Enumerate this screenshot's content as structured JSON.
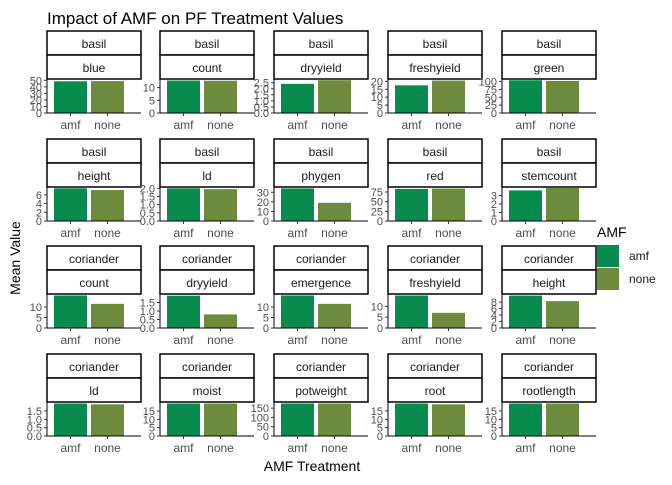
{
  "chart_data": {
    "type": "bar",
    "title": "Impact of AMF on PF Treatment Values",
    "xlabel": "AMF Treatment",
    "ylabel": "Mean Value",
    "categories": [
      "amf",
      "none"
    ],
    "legend": {
      "title": "AMF",
      "position": "right",
      "entries": [
        {
          "label": "amf",
          "color": "#078b4f"
        },
        {
          "label": "none",
          "color": "#6e8b3d"
        }
      ]
    },
    "grid": false,
    "facets": [
      {
        "crop": "basil",
        "variable": "blue",
        "values": [
          48.5,
          48.8
        ],
        "ylim": [
          0,
          52
        ],
        "ticks": [
          0,
          10,
          20,
          30,
          40,
          50
        ]
      },
      {
        "crop": "basil",
        "variable": "count",
        "values": [
          12.8,
          12.7
        ],
        "ylim": [
          0,
          13.4
        ],
        "ticks": [
          0,
          5,
          10
        ]
      },
      {
        "crop": "basil",
        "variable": "dryyield",
        "values": [
          2.4,
          2.7
        ],
        "ylim": [
          0,
          2.8
        ],
        "ticks": [
          0.0,
          0.5,
          1.0,
          1.5,
          2.0,
          2.5
        ],
        "tick_labels": [
          "0.0",
          "0.5",
          "1.0",
          "1.5",
          "2.0",
          "2.5"
        ]
      },
      {
        "crop": "basil",
        "variable": "freshyield",
        "values": [
          17.5,
          20.5
        ],
        "ylim": [
          0,
          21.5
        ],
        "ticks": [
          0,
          5,
          10,
          15,
          20
        ]
      },
      {
        "crop": "basil",
        "variable": "green",
        "values": [
          104,
          102
        ],
        "ylim": [
          0,
          108
        ],
        "ticks": [
          0,
          25,
          50,
          75,
          100
        ]
      },
      {
        "crop": "basil",
        "variable": "height",
        "values": [
          7.5,
          7.1
        ],
        "ylim": [
          0,
          7.8
        ],
        "ticks": [
          0,
          2,
          4,
          6
        ]
      },
      {
        "crop": "basil",
        "variable": "ld",
        "values": [
          2.0,
          1.95
        ],
        "ylim": [
          0,
          2.08
        ],
        "ticks": [
          0.0,
          0.5,
          1.0,
          1.5,
          2.0
        ],
        "tick_labels": [
          "0.0",
          "0.5",
          "1.0",
          "1.5",
          "2.0"
        ]
      },
      {
        "crop": "basil",
        "variable": "phygen",
        "values": [
          34,
          19
        ],
        "ylim": [
          0,
          35.5
        ],
        "ticks": [
          0,
          10,
          20,
          30
        ]
      },
      {
        "crop": "basil",
        "variable": "red",
        "values": [
          83,
          84
        ],
        "ylim": [
          0,
          88
        ],
        "ticks": [
          0,
          25,
          50,
          75
        ]
      },
      {
        "crop": "basil",
        "variable": "stemcount",
        "values": [
          3.6,
          3.9
        ],
        "ylim": [
          0,
          4.0
        ],
        "ticks": [
          0,
          1,
          2,
          3
        ]
      },
      {
        "crop": "coriander",
        "variable": "count",
        "values": [
          15.5,
          11.5
        ],
        "ylim": [
          0,
          16.2
        ],
        "ticks": [
          0,
          5,
          10
        ]
      },
      {
        "crop": "coriander",
        "variable": "dryyield",
        "values": [
          1.9,
          0.8
        ],
        "ylim": [
          0,
          2.0
        ],
        "ticks": [
          0.0,
          0.5,
          1.0,
          1.5
        ],
        "tick_labels": [
          "0.0",
          "0.5",
          "1.0",
          "1.5"
        ]
      },
      {
        "crop": "coriander",
        "variable": "emergence",
        "values": [
          15.5,
          11.5
        ],
        "ylim": [
          0,
          16.2
        ],
        "ticks": [
          0,
          5,
          10
        ]
      },
      {
        "crop": "coriander",
        "variable": "freshyield",
        "values": [
          15,
          7
        ],
        "ylim": [
          0,
          15.7
        ],
        "ticks": [
          0,
          5,
          10
        ]
      },
      {
        "crop": "coriander",
        "variable": "height",
        "values": [
          10,
          8.3
        ],
        "ylim": [
          0,
          10.5
        ],
        "ticks": [
          0,
          2,
          4,
          6,
          8
        ]
      },
      {
        "crop": "coriander",
        "variable": "ld",
        "values": [
          1.95,
          1.9
        ],
        "ylim": [
          0,
          2.04
        ],
        "ticks": [
          0.0,
          0.5,
          1.0,
          1.5
        ],
        "tick_labels": [
          "0.0",
          "0.5",
          "1.0",
          "1.5"
        ]
      },
      {
        "crop": "coriander",
        "variable": "moist",
        "values": [
          19.5,
          19.5
        ],
        "ylim": [
          0,
          20.4
        ],
        "ticks": [
          0,
          5,
          10,
          15
        ]
      },
      {
        "crop": "coriander",
        "variable": "potweight",
        "values": [
          175,
          175
        ],
        "ylim": [
          0,
          183
        ],
        "ticks": [
          0,
          50,
          100,
          150
        ]
      },
      {
        "crop": "coriander",
        "variable": "root",
        "values": [
          19.5,
          19
        ],
        "ylim": [
          0,
          20.4
        ],
        "ticks": [
          0,
          5,
          10,
          15
        ]
      },
      {
        "crop": "coriander",
        "variable": "rootlength",
        "values": [
          19.5,
          19.5
        ],
        "ylim": [
          0,
          20.4
        ],
        "ticks": [
          0,
          5,
          10,
          15
        ]
      }
    ]
  }
}
